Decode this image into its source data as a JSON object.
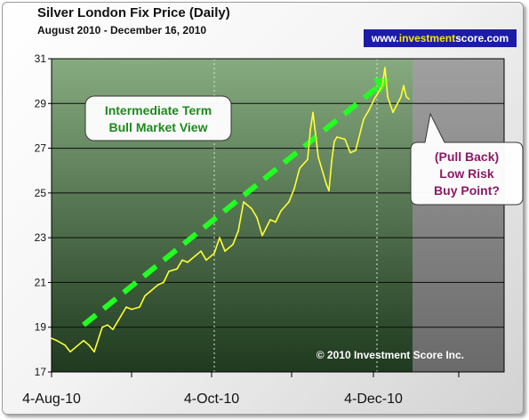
{
  "chart_data": {
    "type": "line",
    "title": "Silver London Fix Price (Daily)",
    "subtitle": "August 2010 - December 16, 2010",
    "ylim": [
      17,
      31
    ],
    "y_ticks": [
      17,
      19,
      21,
      23,
      25,
      27,
      29,
      31
    ],
    "x_ticks": [
      "4-Aug-10",
      "4-Oct-10",
      "4-Dec-10"
    ],
    "grid": true,
    "series": [
      {
        "color": "#ffff33",
        "x": [
          "2010-08-04",
          "2010-08-06",
          "2010-08-09",
          "2010-08-11",
          "2010-08-13",
          "2010-08-16",
          "2010-08-18",
          "2010-08-20",
          "2010-08-23",
          "2010-08-25",
          "2010-08-27",
          "2010-08-30",
          "2010-09-01",
          "2010-09-03",
          "2010-09-06",
          "2010-09-08",
          "2010-09-10",
          "2010-09-13",
          "2010-09-15",
          "2010-09-17",
          "2010-09-20",
          "2010-09-22",
          "2010-09-24",
          "2010-09-27",
          "2010-09-29",
          "2010-10-01",
          "2010-10-04",
          "2010-10-06",
          "2010-10-08",
          "2010-10-11",
          "2010-10-13",
          "2010-10-15",
          "2010-10-18",
          "2010-10-20",
          "2010-10-22",
          "2010-10-25",
          "2010-10-27",
          "2010-10-29",
          "2010-11-01",
          "2010-11-03",
          "2010-11-05",
          "2010-11-08",
          "2010-11-09",
          "2010-11-10",
          "2010-11-11",
          "2010-11-12",
          "2010-11-15",
          "2010-11-16",
          "2010-11-17",
          "2010-11-18",
          "2010-11-19",
          "2010-11-22",
          "2010-11-24",
          "2010-11-26",
          "2010-11-29",
          "2010-12-01",
          "2010-12-03",
          "2010-12-06",
          "2010-12-07",
          "2010-12-08",
          "2010-12-10",
          "2010-12-13",
          "2010-12-14",
          "2010-12-15",
          "2010-12-16"
        ],
        "values": [
          18.5,
          18.4,
          18.2,
          17.9,
          18.1,
          18.4,
          18.2,
          17.9,
          19.0,
          19.1,
          18.9,
          19.5,
          19.9,
          19.8,
          19.9,
          20.4,
          20.6,
          20.9,
          21.0,
          21.5,
          21.6,
          22.0,
          21.9,
          22.2,
          22.4,
          22.0,
          22.3,
          23.0,
          22.4,
          22.7,
          23.3,
          24.6,
          24.3,
          23.9,
          23.1,
          23.8,
          23.7,
          24.2,
          24.6,
          25.2,
          26.1,
          26.5,
          27.8,
          28.6,
          27.6,
          26.6,
          25.4,
          25.1,
          26.4,
          27.3,
          27.5,
          27.4,
          26.8,
          26.9,
          28.3,
          28.7,
          29.2,
          29.8,
          30.6,
          29.3,
          28.6,
          29.3,
          29.8,
          29.3,
          29.2
        ]
      }
    ],
    "annotations": {
      "bull_view": [
        "Intermediate Term",
        "Bull Market View"
      ],
      "pullback": [
        "(Pull Back)",
        "Low Risk",
        "Buy Point?"
      ],
      "copyright": "© 2010 Investment Score Inc."
    },
    "trend_line": {
      "from": [
        "2010-08-16",
        19.1
      ],
      "to": [
        "2010-12-06",
        29.9
      ],
      "color": "#22ff22"
    },
    "colors": {
      "plot_bg_top": "#87ab80",
      "plot_bg_bottom": "#1f3a1f",
      "forecast_zone": "#8f8f8f",
      "line": "#ffff33"
    }
  },
  "brand": {
    "prefix": "www.",
    "accent": "investment",
    "suffix": "score.com"
  }
}
